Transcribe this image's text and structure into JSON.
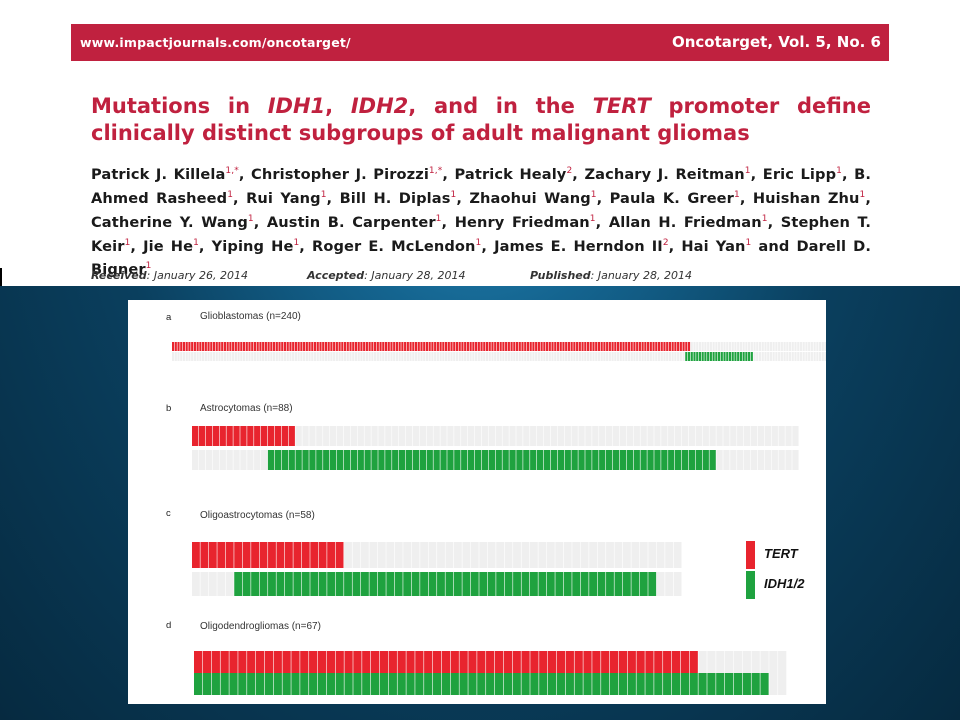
{
  "header": {
    "url": "www.impactjournals.com/oncotarget/",
    "volume": "Oncotarget, Vol. 5, No. 6"
  },
  "title": {
    "t1": "Mutations in ",
    "g1": "IDH1",
    "t2": ", ",
    "g2": "IDH2",
    "t3": ", and in the ",
    "g3": "TERT",
    "t4": " promoter define clinically distinct subgroups of adult malignant gliomas"
  },
  "authors": [
    {
      "name": "Patrick J. Killela",
      "sup": "1,*",
      "sep": ", "
    },
    {
      "name": "Christopher J. Pirozzi",
      "sup": "1,*",
      "sep": ", "
    },
    {
      "name": "Patrick Healy",
      "sup": "2",
      "sep": ", "
    },
    {
      "name": "Zachary J. Reitman",
      "sup": "1",
      "sep": ", "
    },
    {
      "name": "Eric Lipp",
      "sup": "1",
      "sep": ", "
    },
    {
      "name": "B. Ahmed Rasheed",
      "sup": "1",
      "sep": ", "
    },
    {
      "name": "Rui Yang",
      "sup": "1",
      "sep": ", "
    },
    {
      "name": "Bill H. Diplas",
      "sup": "1",
      "sep": ", "
    },
    {
      "name": "Zhaohui Wang",
      "sup": "1",
      "sep": ", "
    },
    {
      "name": "Paula K. Greer",
      "sup": "1",
      "sep": ", "
    },
    {
      "name": "Huishan Zhu",
      "sup": "1",
      "sep": ", "
    },
    {
      "name": "Catherine Y. Wang",
      "sup": "1",
      "sep": ", "
    },
    {
      "name": "Austin B. Carpenter",
      "sup": "1",
      "sep": ", "
    },
    {
      "name": "Henry Friedman",
      "sup": "1",
      "sep": ", "
    },
    {
      "name": "Allan H. Friedman",
      "sup": "1",
      "sep": ", "
    },
    {
      "name": "Stephen T. Keir",
      "sup": "1",
      "sep": ", "
    },
    {
      "name": "Jie He",
      "sup": "1",
      "sep": ", "
    },
    {
      "name": "Yiping He",
      "sup": "1",
      "sep": ", "
    },
    {
      "name": "Roger E. McLendon",
      "sup": "1",
      "sep": ", "
    },
    {
      "name": "James E. Herndon II",
      "sup": "2",
      "sep": ", "
    },
    {
      "name": "Hai Yan",
      "sup": "1",
      "sep": " and "
    },
    {
      "name": "Darell D. Bigner",
      "sup": "1",
      "sep": ""
    }
  ],
  "dates": {
    "received_label": "Received",
    "received": ": January 26, 2014",
    "accepted_label": "Accepted",
    "accepted": ": January 28, 2014",
    "published_label": "Published",
    "published": ": January 28, 2014"
  },
  "colors": {
    "brand": "#c0213f",
    "tert": "#e8242e",
    "idh": "#1fa23f",
    "empty": "#efefef"
  },
  "chart_data": {
    "type": "heatmap",
    "legend": [
      "TERT",
      "IDH1/2"
    ],
    "panels": [
      {
        "letter": "a",
        "title": "Glioblastomas (n=240)",
        "n": 240,
        "rows": [
          {
            "series": "TERT",
            "start": 0,
            "count": 190
          },
          {
            "series": "IDH1/2",
            "start": 188,
            "count": 25
          }
        ]
      },
      {
        "letter": "b",
        "title": "Astrocytomas (n=88)",
        "n": 88,
        "rows": [
          {
            "series": "TERT",
            "start": 0,
            "count": 15
          },
          {
            "series": "IDH1/2",
            "start": 11,
            "count": 65
          }
        ]
      },
      {
        "letter": "c",
        "title": "Oligoastrocytomas (n=58)",
        "n": 58,
        "rows": [
          {
            "series": "TERT",
            "start": 0,
            "count": 18
          },
          {
            "series": "IDH1/2",
            "start": 5,
            "count": 50
          }
        ]
      },
      {
        "letter": "d",
        "title": "Oligodendrogliomas (n=67)",
        "n": 67,
        "rows": [
          {
            "series": "TERT",
            "start": 0,
            "count": 57
          },
          {
            "series": "IDH1/2",
            "start": 0,
            "count": 65
          }
        ]
      }
    ]
  }
}
